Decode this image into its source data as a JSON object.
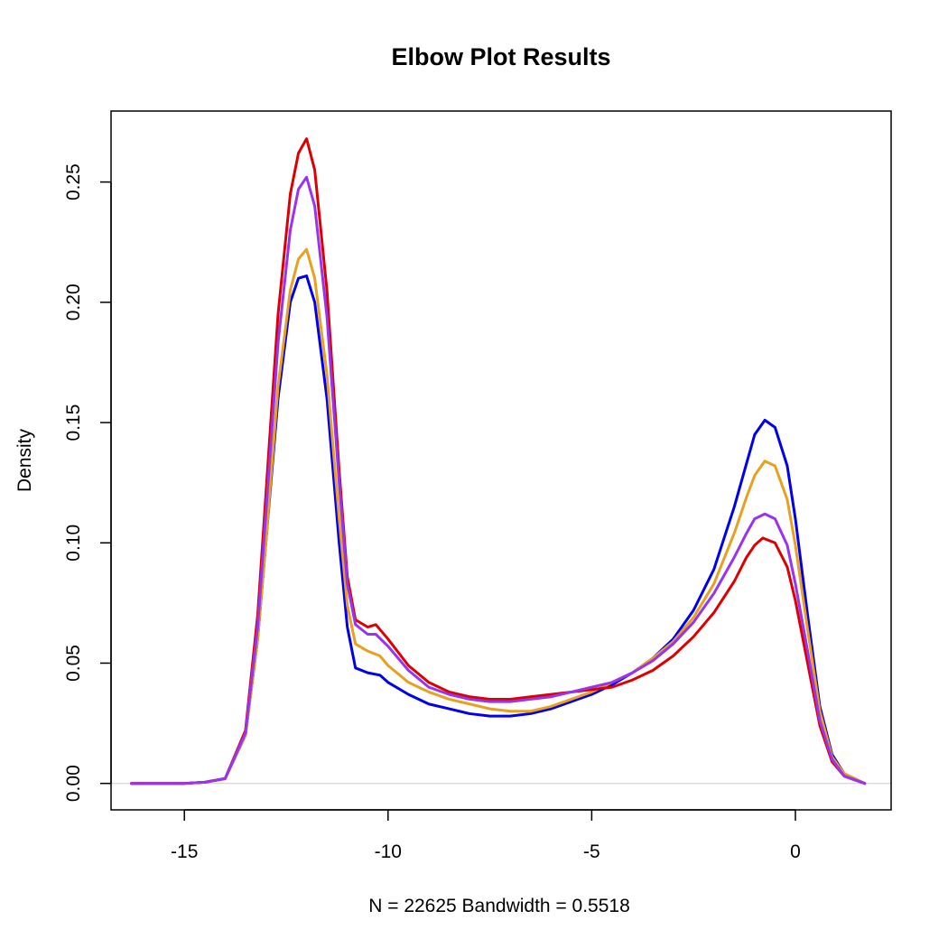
{
  "chart_data": {
    "type": "line",
    "title": "Elbow Plot Results",
    "xlabel": "N = 22625   Bandwidth = 0.5518",
    "ylabel": "Density",
    "xlim": [
      -16.8,
      2.35
    ],
    "ylim": [
      -0.011,
      0.2795
    ],
    "xticks": [
      -15,
      -10,
      -5,
      0
    ],
    "yticks": [
      0.0,
      0.05,
      0.1,
      0.15,
      0.2,
      0.25
    ],
    "ytick_labels": [
      "0.00",
      "0.05",
      "0.10",
      "0.15",
      "0.20",
      "0.25"
    ],
    "zero_line": true,
    "zero_line_color": "#cccccc",
    "grid": false,
    "legend": "none",
    "series": [
      {
        "color": "#0000ee",
        "points": [
          [
            -16.3,
            0
          ],
          [
            -15,
            0
          ],
          [
            -14.5,
            0.0005
          ],
          [
            -14,
            0.002
          ],
          [
            -13.5,
            0.02
          ],
          [
            -13.2,
            0.06
          ],
          [
            -13,
            0.1
          ],
          [
            -12.7,
            0.16
          ],
          [
            -12.4,
            0.2
          ],
          [
            -12.2,
            0.21
          ],
          [
            -12,
            0.211
          ],
          [
            -11.8,
            0.2
          ],
          [
            -11.5,
            0.16
          ],
          [
            -11.2,
            0.1
          ],
          [
            -11,
            0.065
          ],
          [
            -10.8,
            0.048
          ],
          [
            -10.5,
            0.046
          ],
          [
            -10.2,
            0.045
          ],
          [
            -10,
            0.042
          ],
          [
            -9.5,
            0.037
          ],
          [
            -9,
            0.033
          ],
          [
            -8.5,
            0.031
          ],
          [
            -8,
            0.029
          ],
          [
            -7.5,
            0.028
          ],
          [
            -7,
            0.028
          ],
          [
            -6.5,
            0.029
          ],
          [
            -6,
            0.031
          ],
          [
            -5.5,
            0.034
          ],
          [
            -5,
            0.037
          ],
          [
            -4.5,
            0.041
          ],
          [
            -4,
            0.046
          ],
          [
            -3.5,
            0.052
          ],
          [
            -3,
            0.06
          ],
          [
            -2.5,
            0.072
          ],
          [
            -2,
            0.089
          ],
          [
            -1.5,
            0.115
          ],
          [
            -1.2,
            0.133
          ],
          [
            -1,
            0.145
          ],
          [
            -0.75,
            0.151
          ],
          [
            -0.5,
            0.148
          ],
          [
            -0.2,
            0.132
          ],
          [
            0,
            0.11
          ],
          [
            0.3,
            0.07
          ],
          [
            0.6,
            0.032
          ],
          [
            0.9,
            0.012
          ],
          [
            1.2,
            0.004
          ],
          [
            1.7,
            0
          ]
        ]
      },
      {
        "color": "#e8a020",
        "points": [
          [
            -16.3,
            0
          ],
          [
            -15,
            0
          ],
          [
            -14.5,
            0.0005
          ],
          [
            -14,
            0.002
          ],
          [
            -13.5,
            0.02
          ],
          [
            -13.2,
            0.06
          ],
          [
            -13,
            0.1
          ],
          [
            -12.7,
            0.165
          ],
          [
            -12.4,
            0.205
          ],
          [
            -12.2,
            0.218
          ],
          [
            -12,
            0.222
          ],
          [
            -11.8,
            0.21
          ],
          [
            -11.5,
            0.17
          ],
          [
            -11.2,
            0.11
          ],
          [
            -11,
            0.074
          ],
          [
            -10.8,
            0.058
          ],
          [
            -10.5,
            0.055
          ],
          [
            -10.2,
            0.053
          ],
          [
            -10,
            0.049
          ],
          [
            -9.5,
            0.042
          ],
          [
            -9,
            0.038
          ],
          [
            -8.5,
            0.035
          ],
          [
            -8,
            0.033
          ],
          [
            -7.5,
            0.031
          ],
          [
            -7,
            0.03
          ],
          [
            -6.5,
            0.03
          ],
          [
            -6,
            0.032
          ],
          [
            -5.5,
            0.035
          ],
          [
            -5,
            0.038
          ],
          [
            -4.5,
            0.042
          ],
          [
            -4,
            0.046
          ],
          [
            -3.5,
            0.052
          ],
          [
            -3,
            0.059
          ],
          [
            -2.5,
            0.069
          ],
          [
            -2,
            0.083
          ],
          [
            -1.5,
            0.104
          ],
          [
            -1.2,
            0.119
          ],
          [
            -1,
            0.128
          ],
          [
            -0.75,
            0.134
          ],
          [
            -0.5,
            0.132
          ],
          [
            -0.2,
            0.118
          ],
          [
            0,
            0.099
          ],
          [
            0.3,
            0.064
          ],
          [
            0.6,
            0.03
          ],
          [
            0.9,
            0.011
          ],
          [
            1.2,
            0.004
          ],
          [
            1.7,
            0
          ]
        ]
      },
      {
        "color": "#dd0000",
        "points": [
          [
            -16.3,
            0
          ],
          [
            -15,
            0
          ],
          [
            -14.5,
            0.0005
          ],
          [
            -14,
            0.002
          ],
          [
            -13.5,
            0.022
          ],
          [
            -13.2,
            0.07
          ],
          [
            -13,
            0.12
          ],
          [
            -12.7,
            0.195
          ],
          [
            -12.4,
            0.245
          ],
          [
            -12.2,
            0.262
          ],
          [
            -12,
            0.268
          ],
          [
            -11.8,
            0.255
          ],
          [
            -11.5,
            0.205
          ],
          [
            -11.2,
            0.13
          ],
          [
            -11,
            0.086
          ],
          [
            -10.8,
            0.068
          ],
          [
            -10.5,
            0.065
          ],
          [
            -10.3,
            0.066
          ],
          [
            -10,
            0.06
          ],
          [
            -9.5,
            0.049
          ],
          [
            -9,
            0.042
          ],
          [
            -8.5,
            0.038
          ],
          [
            -8,
            0.036
          ],
          [
            -7.5,
            0.035
          ],
          [
            -7,
            0.035
          ],
          [
            -6.5,
            0.036
          ],
          [
            -6,
            0.037
          ],
          [
            -5.5,
            0.038
          ],
          [
            -5,
            0.039
          ],
          [
            -4.5,
            0.04
          ],
          [
            -4,
            0.043
          ],
          [
            -3.5,
            0.047
          ],
          [
            -3,
            0.053
          ],
          [
            -2.5,
            0.061
          ],
          [
            -2,
            0.071
          ],
          [
            -1.5,
            0.084
          ],
          [
            -1.2,
            0.094
          ],
          [
            -1,
            0.099
          ],
          [
            -0.8,
            0.102
          ],
          [
            -0.5,
            0.1
          ],
          [
            -0.2,
            0.09
          ],
          [
            0,
            0.076
          ],
          [
            0.3,
            0.05
          ],
          [
            0.6,
            0.024
          ],
          [
            0.9,
            0.009
          ],
          [
            1.2,
            0.003
          ],
          [
            1.7,
            0
          ]
        ]
      },
      {
        "color": "#9933ee",
        "points": [
          [
            -16.3,
            0
          ],
          [
            -15,
            0
          ],
          [
            -14.5,
            0.0005
          ],
          [
            -14,
            0.002
          ],
          [
            -13.5,
            0.021
          ],
          [
            -13.2,
            0.065
          ],
          [
            -13,
            0.112
          ],
          [
            -12.7,
            0.183
          ],
          [
            -12.4,
            0.23
          ],
          [
            -12.2,
            0.247
          ],
          [
            -12,
            0.252
          ],
          [
            -11.8,
            0.24
          ],
          [
            -11.5,
            0.194
          ],
          [
            -11.2,
            0.125
          ],
          [
            -11,
            0.083
          ],
          [
            -10.8,
            0.066
          ],
          [
            -10.5,
            0.062
          ],
          [
            -10.3,
            0.062
          ],
          [
            -10,
            0.057
          ],
          [
            -9.5,
            0.047
          ],
          [
            -9,
            0.04
          ],
          [
            -8.5,
            0.037
          ],
          [
            -8,
            0.035
          ],
          [
            -7.5,
            0.034
          ],
          [
            -7,
            0.034
          ],
          [
            -6.5,
            0.035
          ],
          [
            -6,
            0.036
          ],
          [
            -5.5,
            0.038
          ],
          [
            -5,
            0.04
          ],
          [
            -4.5,
            0.042
          ],
          [
            -4,
            0.046
          ],
          [
            -3.5,
            0.051
          ],
          [
            -3,
            0.058
          ],
          [
            -2.5,
            0.067
          ],
          [
            -2,
            0.079
          ],
          [
            -1.5,
            0.094
          ],
          [
            -1.2,
            0.104
          ],
          [
            -1,
            0.11
          ],
          [
            -0.75,
            0.112
          ],
          [
            -0.5,
            0.11
          ],
          [
            -0.2,
            0.099
          ],
          [
            0,
            0.083
          ],
          [
            0.3,
            0.055
          ],
          [
            0.6,
            0.026
          ],
          [
            0.9,
            0.01
          ],
          [
            1.2,
            0.003
          ],
          [
            1.7,
            0
          ]
        ]
      }
    ]
  }
}
